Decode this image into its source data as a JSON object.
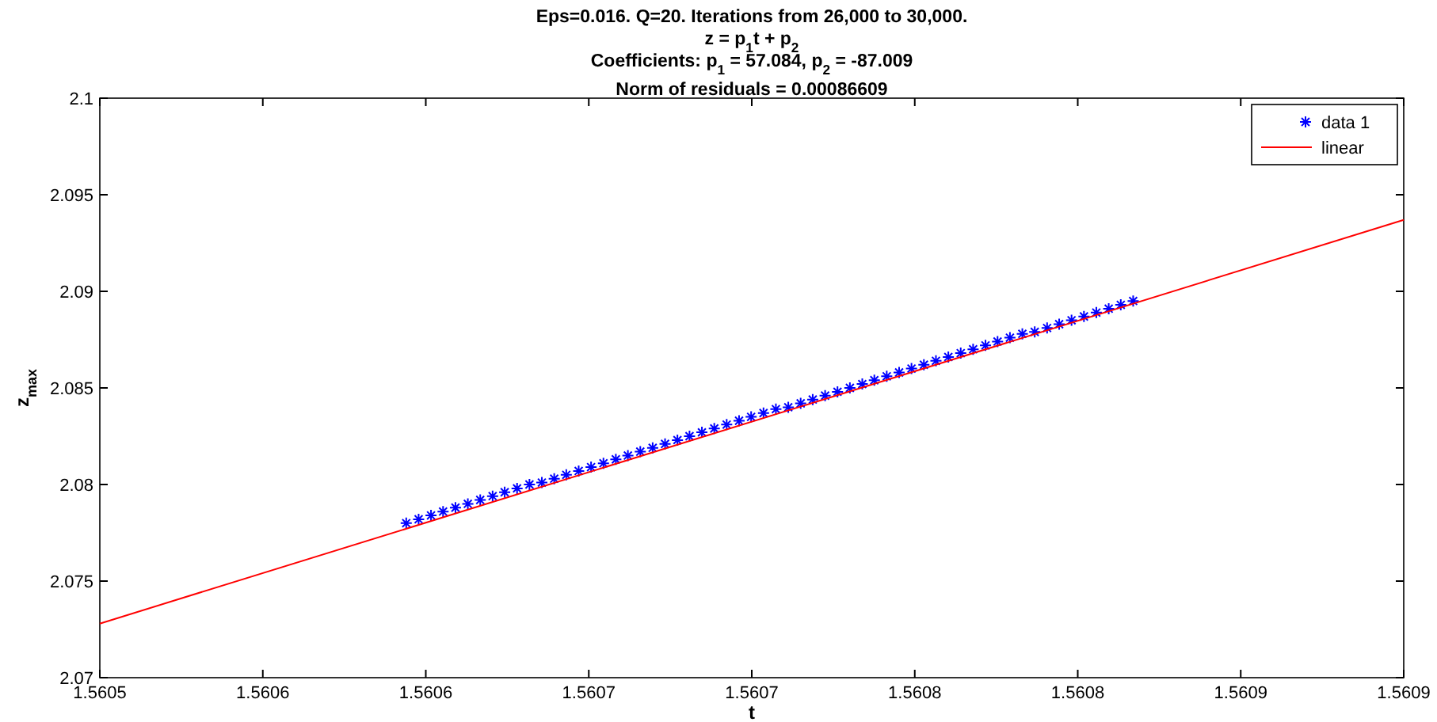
{
  "chart_data": {
    "type": "scatter",
    "title": "Eps=0.016. Q=20. Iterations from 26,000 to 30,000.\nz = p$_{1}$t + p$_{2}$\nCoefficients:  p$_{1}$ = 57.084,   p$_{2}$ = -87.009\nNorm of residuals =   0.00086609",
    "xlabel": "t",
    "ylabel": "z$_{max}$",
    "xlim": [
      1.5605,
      1.5609
    ],
    "xticks": [
      {
        "value": 1.5605,
        "label": "1.5605"
      },
      {
        "value": 1.56055,
        "label": "1.5606"
      },
      {
        "value": 1.5606,
        "label": "1.5606"
      },
      {
        "value": 1.56065,
        "label": "1.5607"
      },
      {
        "value": 1.5607,
        "label": "1.5607"
      },
      {
        "value": 1.56075,
        "label": "1.5608"
      },
      {
        "value": 1.5608,
        "label": "1.5608"
      },
      {
        "value": 1.56085,
        "label": "1.5609"
      },
      {
        "value": 1.5609,
        "label": "1.5609"
      }
    ],
    "ylim": [
      2.07,
      2.1
    ],
    "yticks": [
      2.07,
      2.075,
      2.08,
      2.085,
      2.09,
      2.095,
      2.1
    ],
    "grid": false,
    "legend": "top right",
    "series": [
      {
        "name": "data 1",
        "marker": "cross",
        "color": "#0000ff",
        "x": [
          1.560594,
          1.5605978,
          1.5606016,
          1.5606053,
          1.5606091,
          1.5606129,
          1.5606167,
          1.5606205,
          1.5606242,
          1.560628,
          1.5606318,
          1.5606356,
          1.5606394,
          1.5606431,
          1.5606469,
          1.5606507,
          1.5606545,
          1.5606583,
          1.560662,
          1.5606658,
          1.5606696,
          1.5606734,
          1.5606772,
          1.5606809,
          1.5606847,
          1.5606885,
          1.5606923,
          1.5606961,
          1.5606998,
          1.5607036,
          1.5607074,
          1.5607112,
          1.560715,
          1.5607187,
          1.5607225,
          1.5607263,
          1.5607301,
          1.5607339,
          1.5607376,
          1.5607414,
          1.5607452,
          1.560749,
          1.5607528,
          1.5607565,
          1.5607603,
          1.5607641,
          1.5607679,
          1.5607717,
          1.5607754,
          1.5607792,
          1.560783,
          1.5607868,
          1.5607906,
          1.5607943,
          1.5607981,
          1.5608019,
          1.5608057,
          1.5608095,
          1.5608132,
          1.560817
        ],
        "values": [
          2.078,
          2.0782,
          2.0784,
          2.0786,
          2.0788,
          2.079,
          2.0792,
          2.0794,
          2.0796,
          2.0798,
          2.08,
          2.0801,
          2.0803,
          2.0805,
          2.0807,
          2.0809,
          2.0811,
          2.0813,
          2.0815,
          2.0817,
          2.0819,
          2.0821,
          2.0823,
          2.0825,
          2.0827,
          2.0829,
          2.0831,
          2.0833,
          2.0835,
          2.0837,
          2.0839,
          2.084,
          2.0842,
          2.0844,
          2.0846,
          2.0848,
          2.085,
          2.0852,
          2.0854,
          2.0856,
          2.0858,
          2.086,
          2.0862,
          2.0864,
          2.0866,
          2.0868,
          2.087,
          2.0872,
          2.0874,
          2.0876,
          2.0878,
          2.0879,
          2.0881,
          2.0883,
          2.0885,
          2.0887,
          2.0889,
          2.0891,
          2.0893,
          2.0895
        ]
      },
      {
        "name": "linear",
        "type": "line",
        "line_style": "solid",
        "color": "#ff0000",
        "x": [
          1.5605,
          1.5609
        ],
        "values": [
          2.0728,
          2.0937
        ]
      }
    ]
  }
}
